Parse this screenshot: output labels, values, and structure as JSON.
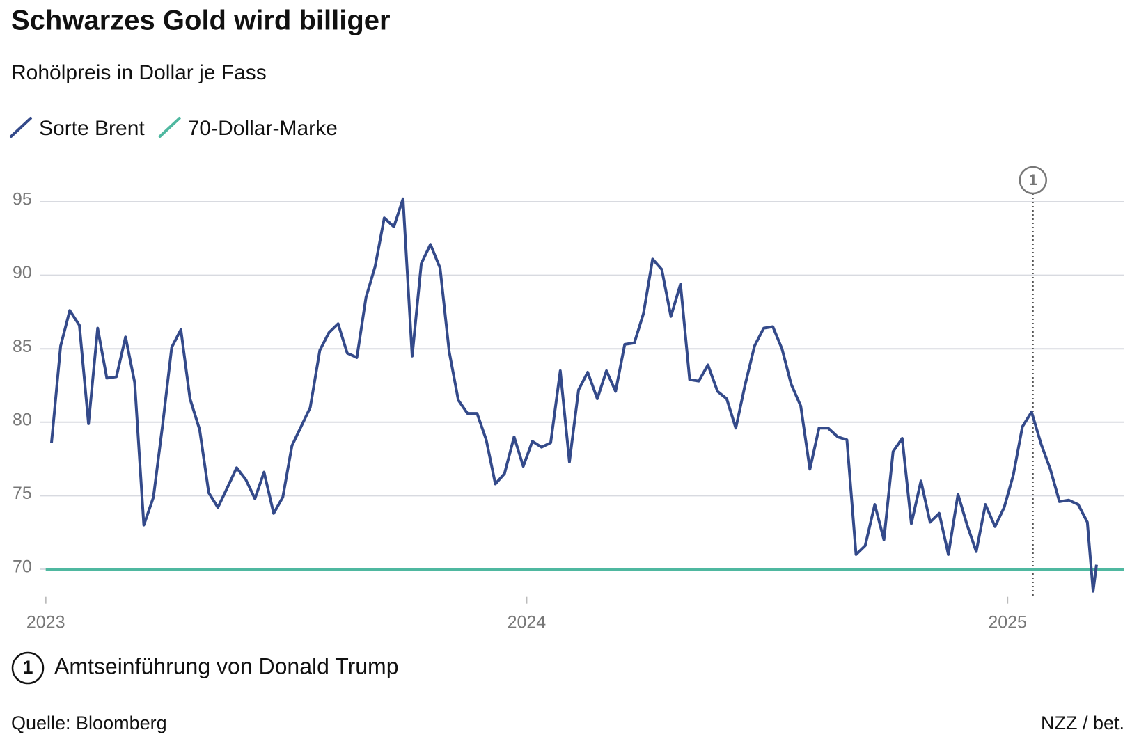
{
  "chart_data": {
    "type": "line",
    "title": "Schwarzes Gold wird billiger",
    "subtitle": "Rohölpreis in Dollar je Fass",
    "x": [
      2023.012,
      2023.031,
      2023.05,
      2023.07,
      2023.089,
      2023.108,
      2023.127,
      2023.147,
      2023.166,
      2023.185,
      2023.204,
      2023.224,
      2023.243,
      2023.262,
      2023.281,
      2023.3,
      2023.32,
      2023.339,
      2023.358,
      2023.377,
      2023.397,
      2023.416,
      2023.435,
      2023.454,
      2023.474,
      2023.493,
      2023.512,
      2023.531,
      2023.55,
      2023.57,
      2023.589,
      2023.608,
      2023.627,
      2023.647,
      2023.666,
      2023.685,
      2023.704,
      2023.724,
      2023.743,
      2023.762,
      2023.781,
      2023.8,
      2023.82,
      2023.839,
      2023.858,
      2023.877,
      2023.897,
      2023.916,
      2023.935,
      2023.954,
      2023.974,
      2023.993,
      2024.012,
      2024.031,
      2024.05,
      2024.07,
      2024.089,
      2024.108,
      2024.127,
      2024.147,
      2024.166,
      2024.185,
      2024.204,
      2024.224,
      2024.243,
      2024.262,
      2024.281,
      2024.3,
      2024.32,
      2024.339,
      2024.358,
      2024.377,
      2024.397,
      2024.416,
      2024.435,
      2024.454,
      2024.474,
      2024.493,
      2024.512,
      2024.531,
      2024.55,
      2024.57,
      2024.589,
      2024.608,
      2024.627,
      2024.647,
      2024.666,
      2024.685,
      2024.704,
      2024.724,
      2024.743,
      2024.762,
      2024.781,
      2024.8,
      2024.82,
      2024.839,
      2024.858,
      2024.877,
      2024.897,
      2024.916,
      2024.935,
      2024.954,
      2024.974,
      2024.993,
      2025.012,
      2025.031,
      2025.05,
      2025.07,
      2025.089,
      2025.108,
      2025.127,
      2025.147,
      2025.166,
      2025.178,
      2025.185
    ],
    "series": [
      {
        "name": "Sorte Brent",
        "color": "#344a8a",
        "values": [
          78.6,
          85.2,
          87.6,
          86.6,
          79.9,
          86.4,
          83.0,
          83.1,
          85.8,
          82.7,
          73.0,
          74.9,
          79.8,
          85.1,
          86.3,
          81.6,
          79.5,
          75.2,
          74.2,
          75.5,
          76.9,
          76.1,
          74.8,
          76.6,
          73.8,
          74.9,
          78.4,
          79.7,
          81.0,
          84.9,
          86.1,
          86.7,
          84.7,
          84.4,
          88.5,
          90.6,
          93.9,
          93.3,
          95.2,
          84.5,
          90.8,
          92.1,
          90.5,
          84.8,
          81.5,
          80.6,
          80.6,
          78.8,
          75.8,
          76.5,
          79.0,
          77.0,
          78.7,
          78.3,
          78.6,
          83.5,
          77.3,
          82.2,
          83.4,
          81.6,
          83.5,
          82.1,
          85.3,
          85.4,
          87.4,
          91.1,
          90.4,
          87.2,
          89.4,
          82.9,
          82.8,
          83.9,
          82.1,
          81.6,
          79.6,
          82.5,
          85.2,
          86.4,
          86.5,
          85.0,
          82.6,
          81.1,
          76.8,
          79.6,
          79.6,
          79.0,
          78.8,
          71.0,
          71.6,
          74.4,
          72.0,
          78.0,
          78.9,
          73.1,
          76.0,
          73.2,
          73.8,
          71.0,
          75.1,
          73.0,
          71.2,
          74.4,
          72.9,
          74.2,
          76.4,
          79.7,
          80.7,
          78.5,
          76.8,
          74.6,
          74.7,
          74.4,
          73.2,
          68.5,
          70.3
        ]
      },
      {
        "name": "70-Dollar-Marke",
        "color": "#4fb8a0",
        "x": [
          2023.0,
          2025.243
        ],
        "values": [
          70,
          70
        ]
      }
    ],
    "xlim": [
      2022.988,
      2025.243
    ],
    "ylim": [
      68.12,
      96
    ],
    "xticks": [
      2023,
      2024,
      2025
    ],
    "yticks": [
      70,
      75,
      80,
      85,
      90,
      95
    ],
    "grid": true,
    "annotations": [
      {
        "x": 2025.053,
        "label": "1",
        "text": "Amtseinführung von Donald Trump"
      }
    ],
    "source": "Quelle: Bloomberg",
    "credit": "NZZ / bet."
  }
}
